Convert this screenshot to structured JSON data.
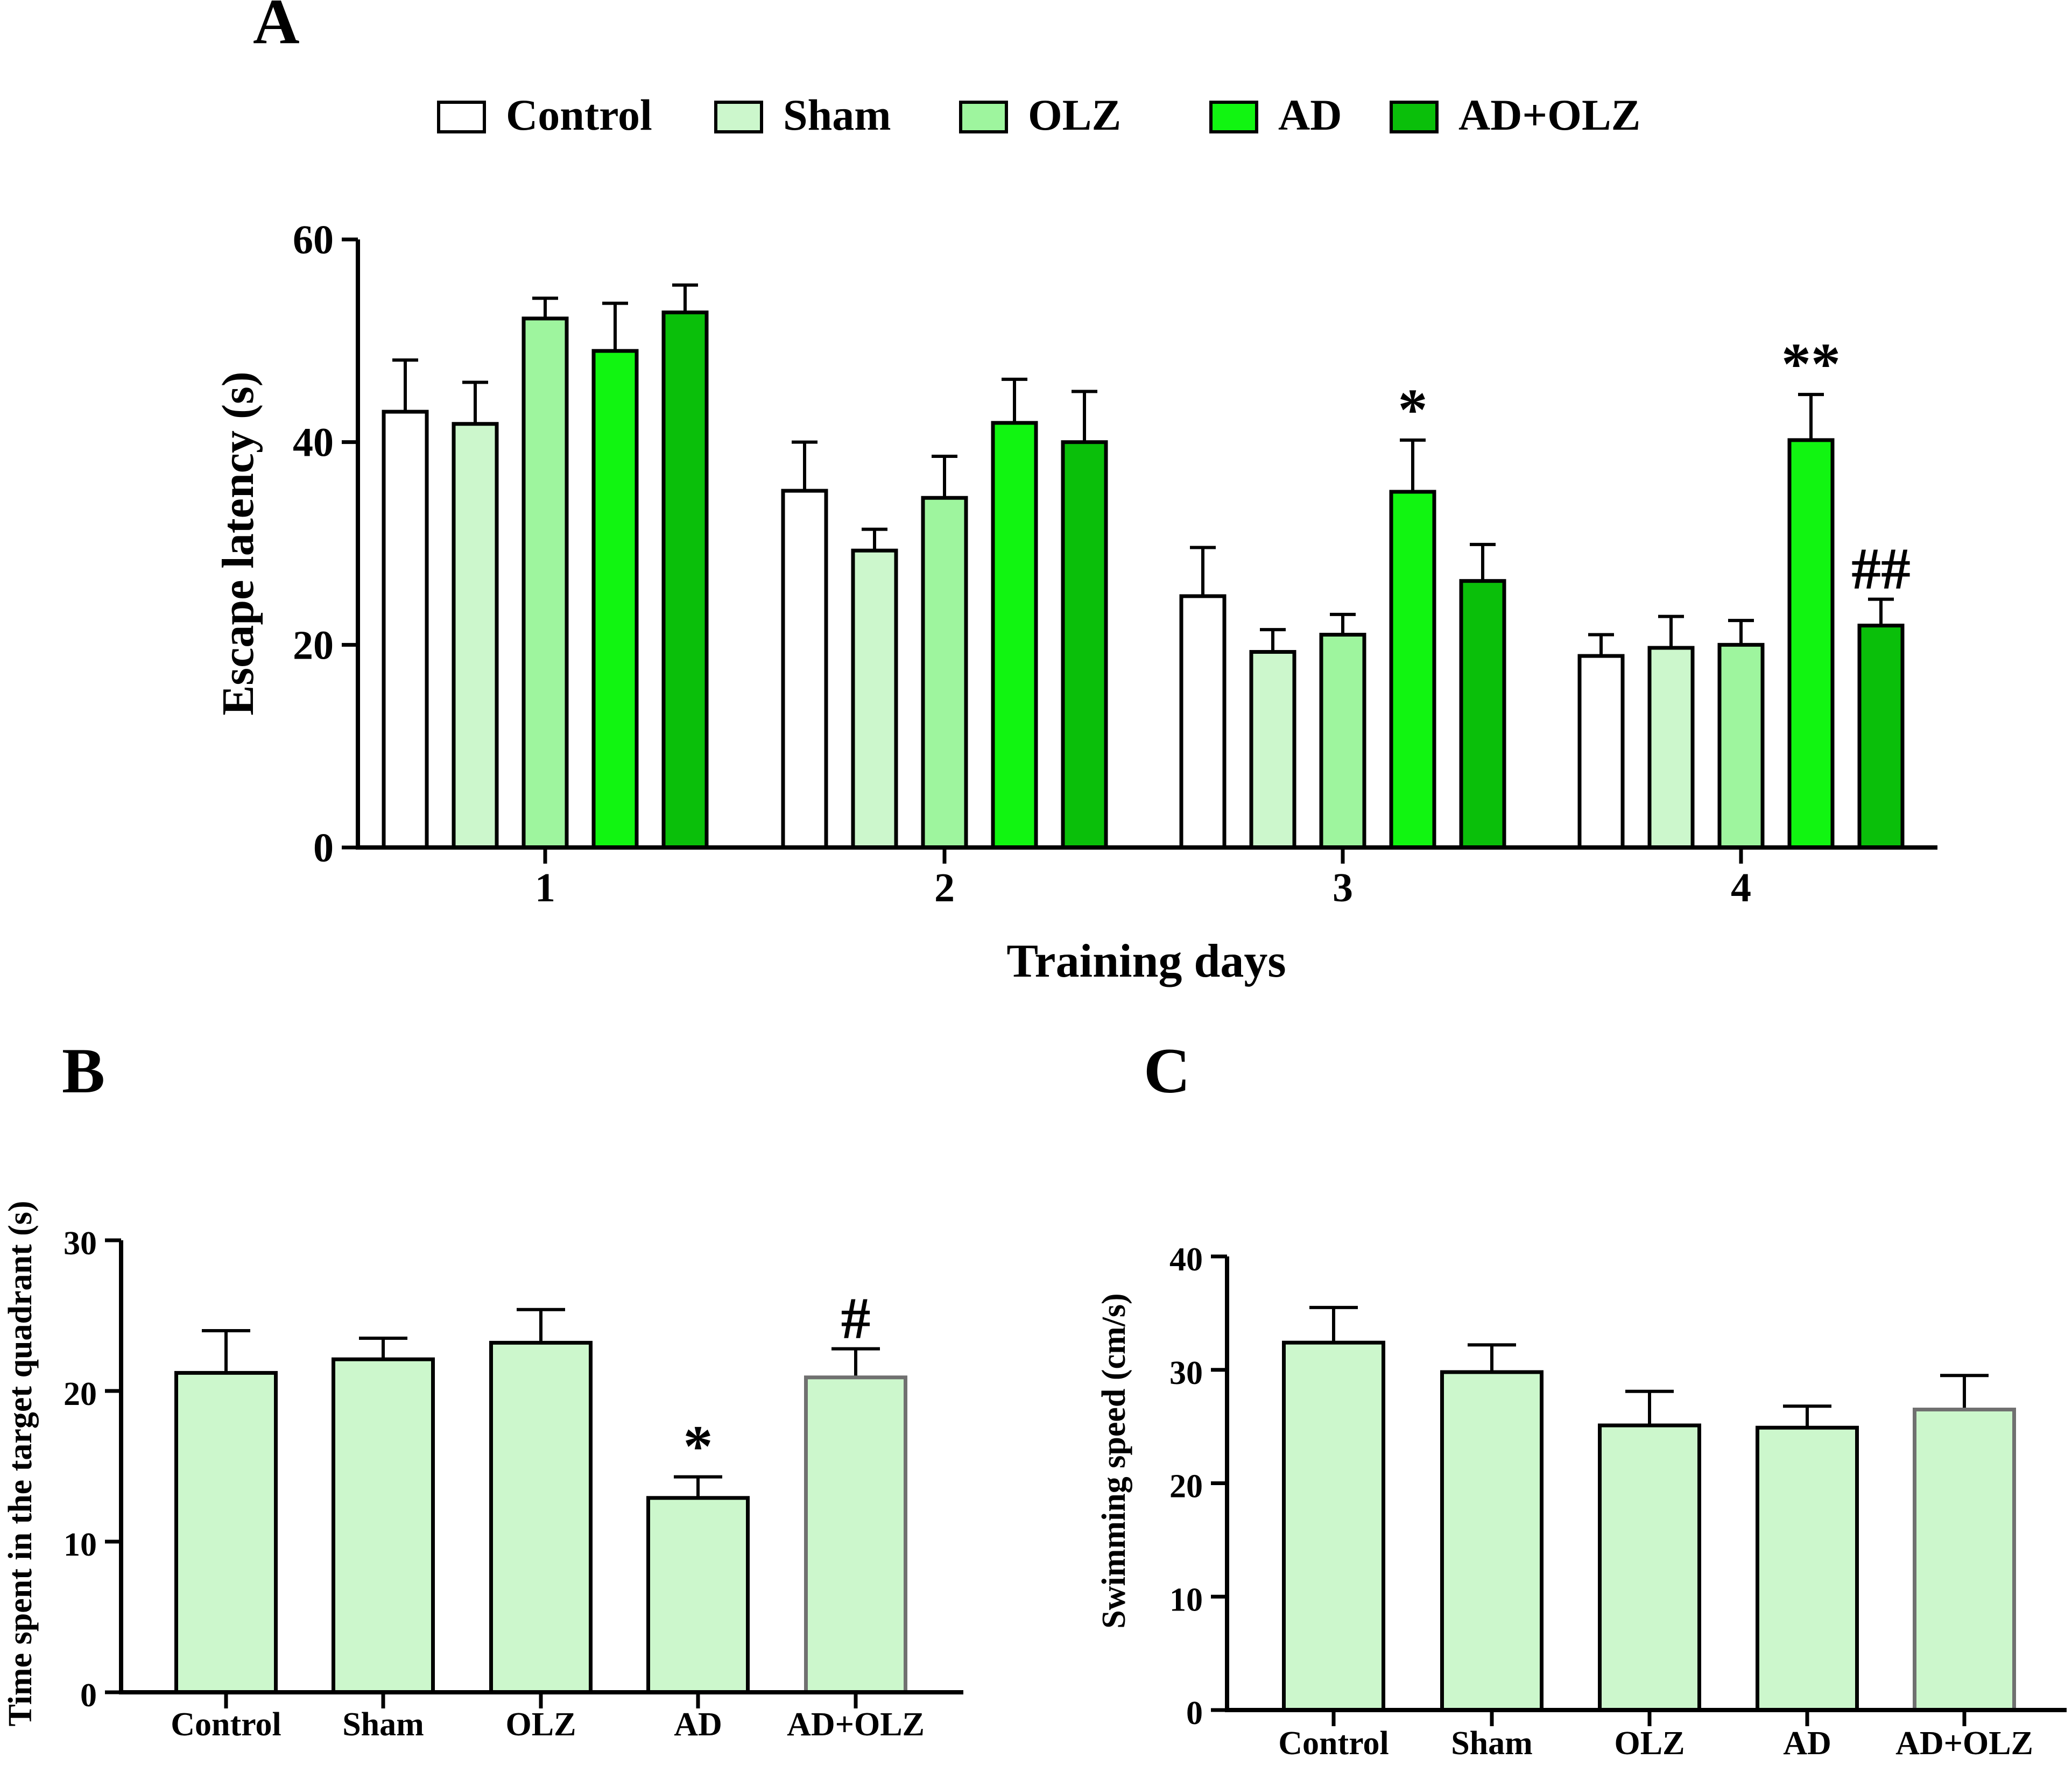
{
  "legend": {
    "items": [
      {
        "label": "Control",
        "color": "#ffffff"
      },
      {
        "label": "Sham",
        "color": "#ccf7cc"
      },
      {
        "label": "OLZ",
        "color": "#9ef59e"
      },
      {
        "label": "AD",
        "color": "#11f511"
      },
      {
        "label": "AD+OLZ",
        "color": "#0abf0a"
      }
    ]
  },
  "chart_data": [
    {
      "panel": "A",
      "type": "bar",
      "xlabel": "Training days",
      "ylabel": "Escape latency (s)",
      "ylim": [
        0,
        60
      ],
      "yticks": [
        "0",
        "20",
        "40",
        "60"
      ],
      "categories": [
        "1",
        "2",
        "3",
        "4"
      ],
      "series": [
        {
          "name": "Control",
          "color": "#ffffff",
          "values": [
            43,
            35.2,
            24.8,
            18.9
          ],
          "errors": [
            5.1,
            4.8,
            4.8,
            2.1
          ],
          "annotations": [
            "",
            "",
            "",
            ""
          ]
        },
        {
          "name": "Sham",
          "color": "#ccf7cc",
          "values": [
            41.8,
            29.3,
            19.3,
            19.7
          ],
          "errors": [
            4.1,
            2.1,
            2.2,
            3.1
          ],
          "annotations": [
            "",
            "",
            "",
            ""
          ]
        },
        {
          "name": "OLZ",
          "color": "#9ef59e",
          "values": [
            52.2,
            34.5,
            21,
            20
          ],
          "errors": [
            2,
            4.1,
            2,
            2.4
          ],
          "annotations": [
            "",
            "",
            "",
            ""
          ]
        },
        {
          "name": "AD",
          "color": "#11f511",
          "values": [
            49,
            41.9,
            35.1,
            40.2
          ],
          "errors": [
            4.7,
            4.3,
            5.1,
            4.5
          ],
          "annotations": [
            "",
            "",
            "*",
            "**"
          ]
        },
        {
          "name": "AD+OLZ",
          "color": "#0abf0a",
          "values": [
            52.8,
            40,
            26.3,
            21.9
          ],
          "errors": [
            2.7,
            5,
            3.6,
            2.6
          ],
          "annotations": [
            "",
            "",
            "",
            "##"
          ]
        }
      ]
    },
    {
      "panel": "B",
      "type": "bar",
      "xlabel": "",
      "ylabel": "Time spent in the target quadrant (s)",
      "ylim": [
        0,
        30
      ],
      "yticks": [
        "0",
        "10",
        "20",
        "30"
      ],
      "categories": [
        "Control",
        "Sham",
        "OLZ",
        "AD",
        "AD+OLZ"
      ],
      "series": [
        {
          "name": "Time in target quadrant",
          "color": "#ccf7cc",
          "values": [
            21.2,
            22.1,
            23.2,
            12.9,
            20.9
          ],
          "errors": [
            2.8,
            1.4,
            2.2,
            1.4,
            1.9
          ],
          "annotations": [
            "",
            "",
            "",
            "*",
            "#"
          ]
        }
      ]
    },
    {
      "panel": "C",
      "type": "bar",
      "xlabel": "",
      "ylabel": "Swimming speed (cm/s)",
      "ylim": [
        0,
        40
      ],
      "yticks": [
        "0",
        "10",
        "20",
        "30",
        "40"
      ],
      "categories": [
        "Control",
        "Sham",
        "OLZ",
        "AD",
        "AD+OLZ"
      ],
      "series": [
        {
          "name": "Swimming speed",
          "color": "#ccf7cc",
          "values": [
            32.4,
            29.8,
            25.1,
            24.9,
            26.5
          ],
          "errors": [
            3.1,
            2.4,
            3,
            1.9,
            3
          ],
          "annotations": [
            "",
            "",
            "",
            "",
            ""
          ]
        }
      ]
    }
  ]
}
